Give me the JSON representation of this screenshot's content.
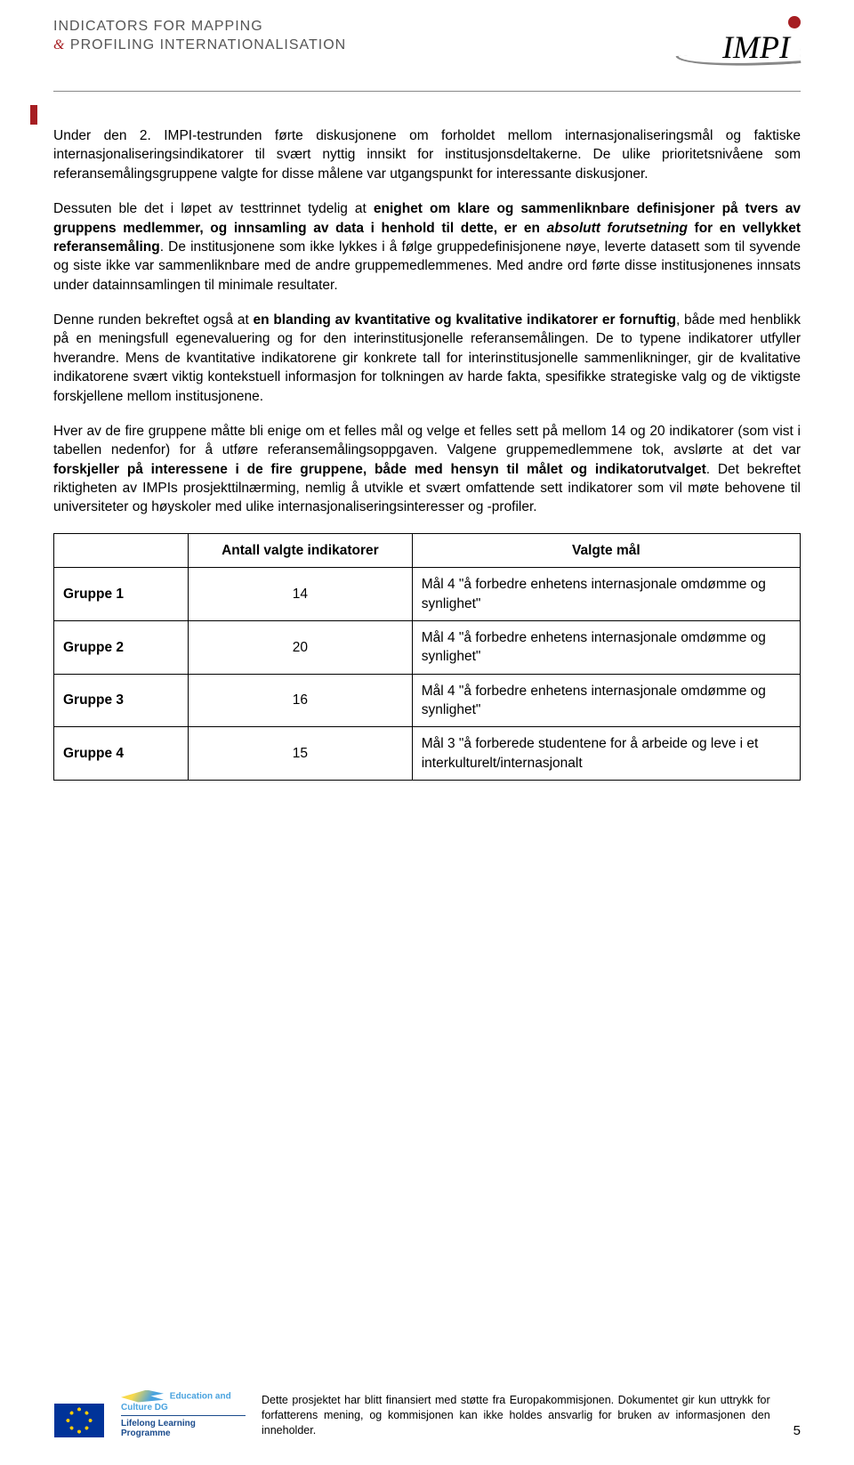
{
  "header": {
    "line1": "INDICATORS FOR MAPPING",
    "line2_amp": "&",
    "line2_rest": " PROFILING INTERNATIONALISATION",
    "logo_text": "IMPI"
  },
  "paragraphs": {
    "p1": "Under den 2. IMPI-testrunden førte diskusjonene om forholdet mellom internasjonaliseringsmål og faktiske internasjonaliseringsindikatorer til svært nyttig innsikt for institusjonsdeltakerne. De ulike prioritetsnivåene som referansemålingsgruppene valgte for disse målene var utgangspunkt for interessante diskusjoner.",
    "p2_a": "Dessuten ble det i løpet av testtrinnet tydelig at ",
    "p2_b": "enighet om klare og sammenliknbare definisjoner på tvers av gruppens medlemmer, og innsamling av data i henhold til dette, er en ",
    "p2_i": "absolutt forutsetning",
    "p2_c": " for en vellykket referansemåling",
    "p2_d": ". De institusjonene som ikke lykkes i å følge gruppedefinisjonene nøye, leverte datasett som til syvende og siste ikke var sammenliknbare med de andre gruppemedlemmenes. Med andre ord førte disse institusjonenes innsats under datainnsamlingen til minimale resultater.",
    "p3_a": "Denne runden bekreftet også at ",
    "p3_b": "en blanding av kvantitative og kvalitative indikatorer er fornuftig",
    "p3_c": ", både med henblikk på en meningsfull egenevaluering og for den interinstitusjonelle referansemålingen. De to typene indikatorer utfyller hverandre. Mens de kvantitative indikatorene gir konkrete tall for interinstitusjonelle sammenlikninger, gir de kvalitative indikatorene svært viktig kontekstuell informasjon for tolkningen av harde fakta, spesifikke strategiske valg og de viktigste forskjellene mellom institusjonene.",
    "p4_a": "Hver av de fire gruppene måtte bli enige om et felles mål og velge et felles sett på mellom 14 og 20 indikatorer (som vist i tabellen nedenfor) for å utføre referansemålingsoppgaven. Valgene gruppemedlemmene tok, avslørte at det var ",
    "p4_b": "forskjeller på interessene i de fire gruppene, både med hensyn til målet og indikatorutvalget",
    "p4_c": ". Det bekreftet riktigheten av IMPIs prosjekttilnærming, nemlig å utvikle et svært omfattende sett indikatorer som vil møte behovene til universiteter og høyskoler med ulike internasjonaliseringsinteresser og -profiler."
  },
  "table": {
    "head1": "Antall valgte indikatorer",
    "head2": "Valgte mål",
    "rows": [
      {
        "g": "Gruppe 1",
        "n": "14",
        "goal": "Mål 4 \"å forbedre enhetens internasjonale omdømme og synlighet\""
      },
      {
        "g": "Gruppe 2",
        "n": "20",
        "goal": "Mål 4 \"å forbedre enhetens internasjonale omdømme og synlighet\""
      },
      {
        "g": "Gruppe 3",
        "n": "16",
        "goal": "Mål 4 \"å forbedre enhetens internasjonale omdømme og synlighet\""
      },
      {
        "g": "Gruppe 4",
        "n": "15",
        "goal": "Mål 3 \"å forberede studentene for å arbeide og leve i et interkulturelt/internasjonalt"
      }
    ]
  },
  "footer": {
    "llp_top1": "Education and Culture DG",
    "llp_bot": "Lifelong Learning Programme",
    "text": "Dette prosjektet har blitt finansiert med støtte fra Europakommisjonen. Dokumentet gir kun uttrykk for forfatterens mening, og kommisjonen kan ikke holdes ansvarlig for bruken av informasjonen den inneholder.",
    "page": "5"
  }
}
